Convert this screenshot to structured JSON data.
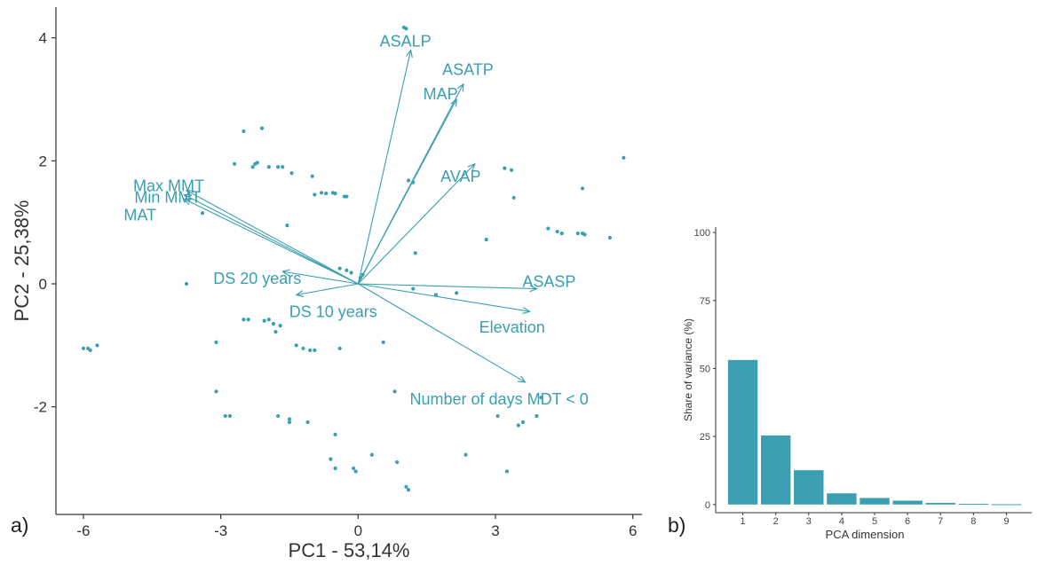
{
  "chart_data": [
    {
      "type": "scatter",
      "panel_label": "a)",
      "xlabel": "PC1 - 53,14%",
      "ylabel": "PC2 - 25,38%",
      "xlim": [
        -6.6,
        6.2
      ],
      "ylim": [
        -3.75,
        4.5
      ],
      "xticks": [
        -6,
        -3,
        0,
        3,
        6
      ],
      "yticks": [
        -2,
        0,
        2,
        4
      ],
      "grid": false,
      "colors": {
        "accent": "#3a9fb1",
        "axis": "#333333"
      },
      "points": [
        [
          -6.0,
          -1.05
        ],
        [
          -5.9,
          -1.05
        ],
        [
          -5.85,
          -1.08
        ],
        [
          -5.7,
          -1.0
        ],
        [
          -3.75,
          0.0
        ],
        [
          -3.1,
          -0.95
        ],
        [
          -3.1,
          -1.75
        ],
        [
          -2.9,
          -2.15
        ],
        [
          -2.8,
          -2.15
        ],
        [
          -3.4,
          1.15
        ],
        [
          -2.5,
          2.48
        ],
        [
          -2.1,
          2.53
        ],
        [
          -2.7,
          1.95
        ],
        [
          -2.3,
          1.9
        ],
        [
          -2.25,
          1.95
        ],
        [
          -2.2,
          1.97
        ],
        [
          -1.95,
          1.9
        ],
        [
          -1.75,
          1.9
        ],
        [
          -1.65,
          1.9
        ],
        [
          -1.45,
          1.8
        ],
        [
          -1.0,
          1.75
        ],
        [
          -1.55,
          0.95
        ],
        [
          -0.95,
          1.45
        ],
        [
          -0.8,
          1.48
        ],
        [
          -0.7,
          1.47
        ],
        [
          -0.55,
          1.48
        ],
        [
          -0.5,
          1.47
        ],
        [
          -0.3,
          1.42
        ],
        [
          -0.25,
          1.42
        ],
        [
          -2.5,
          -0.58
        ],
        [
          -2.4,
          -0.58
        ],
        [
          -2.05,
          -0.6
        ],
        [
          -1.95,
          -0.58
        ],
        [
          -1.85,
          -0.65
        ],
        [
          -1.7,
          -0.68
        ],
        [
          -1.8,
          -0.78
        ],
        [
          -1.35,
          -1.0
        ],
        [
          -1.2,
          -1.05
        ],
        [
          -1.05,
          -1.08
        ],
        [
          -0.95,
          -1.08
        ],
        [
          -0.4,
          -1.05
        ],
        [
          0.55,
          -0.95
        ],
        [
          -1.75,
          -2.15
        ],
        [
          -1.5,
          -2.2
        ],
        [
          -1.5,
          -2.25
        ],
        [
          -1.1,
          -2.25
        ],
        [
          -0.5,
          -2.45
        ],
        [
          -0.6,
          -2.85
        ],
        [
          -0.5,
          -3.0
        ],
        [
          0.3,
          -2.78
        ],
        [
          -0.1,
          -3.0
        ],
        [
          -0.05,
          -3.05
        ],
        [
          0.85,
          -2.9
        ],
        [
          1.05,
          -3.3
        ],
        [
          1.1,
          -3.35
        ],
        [
          0.8,
          -1.75
        ],
        [
          2.35,
          -2.78
        ],
        [
          3.25,
          -3.05
        ],
        [
          3.05,
          -2.15
        ],
        [
          3.5,
          -2.3
        ],
        [
          3.6,
          -2.25
        ],
        [
          3.9,
          -2.15
        ],
        [
          4.0,
          -1.85
        ],
        [
          1.1,
          1.68
        ],
        [
          1.2,
          1.65
        ],
        [
          3.2,
          1.88
        ],
        [
          3.35,
          1.85
        ],
        [
          3.4,
          1.4
        ],
        [
          4.9,
          1.55
        ],
        [
          5.8,
          2.05
        ],
        [
          4.15,
          0.9
        ],
        [
          4.35,
          0.85
        ],
        [
          4.45,
          0.82
        ],
        [
          4.8,
          0.82
        ],
        [
          4.9,
          0.82
        ],
        [
          4.95,
          0.8
        ],
        [
          5.5,
          0.75
        ],
        [
          2.8,
          0.72
        ],
        [
          1.25,
          0.5
        ],
        [
          1.2,
          -0.08
        ],
        [
          1.7,
          -0.18
        ],
        [
          2.15,
          -0.15
        ],
        [
          -0.4,
          0.25
        ],
        [
          -0.25,
          0.22
        ],
        [
          -0.15,
          0.18
        ],
        [
          0.05,
          0.1
        ],
        [
          0.1,
          0.15
        ],
        [
          1.0,
          4.17
        ],
        [
          1.05,
          4.15
        ]
      ],
      "vectors": [
        {
          "label": "ASALP",
          "dx": 1.15,
          "dy": 3.8
        },
        {
          "label": "ASATP",
          "dx": 2.3,
          "dy": 3.25
        },
        {
          "label": "MAP",
          "dx": 2.15,
          "dy": 3.0
        },
        {
          "label": "AVAP",
          "dx": 2.55,
          "dy": 1.95
        },
        {
          "label": "Max MMT",
          "dx": -3.75,
          "dy": 1.52
        },
        {
          "label": "Min MMT",
          "dx": -3.8,
          "dy": 1.38
        },
        {
          "label": "MAT",
          "dx": -3.8,
          "dy": 1.45
        },
        {
          "label": "DS 20 years",
          "dx": -1.65,
          "dy": 0.2
        },
        {
          "label": "DS 10 years",
          "dx": -1.35,
          "dy": -0.18
        },
        {
          "label": "ASASP",
          "dx": 3.9,
          "dy": -0.08
        },
        {
          "label": "Elevation",
          "dx": 3.75,
          "dy": -0.45
        },
        {
          "label": "Number of days MDT < 0",
          "dx": 3.65,
          "dy": -1.6
        }
      ]
    },
    {
      "type": "bar",
      "panel_label": "b)",
      "xlabel": "PCA dimension",
      "ylabel": "Share of variance (%)",
      "categories": [
        "1",
        "2",
        "3",
        "4",
        "5",
        "6",
        "7",
        "8",
        "9"
      ],
      "values": [
        53.14,
        25.38,
        12.6,
        4.1,
        2.4,
        1.4,
        0.6,
        0.25,
        0.1
      ],
      "ylim": [
        -3,
        102
      ],
      "yticks": [
        "0",
        "25",
        "50",
        "75",
        "100"
      ],
      "grid": false,
      "colors": {
        "bar": "#3a9fb1",
        "axis": "#333333"
      }
    }
  ]
}
